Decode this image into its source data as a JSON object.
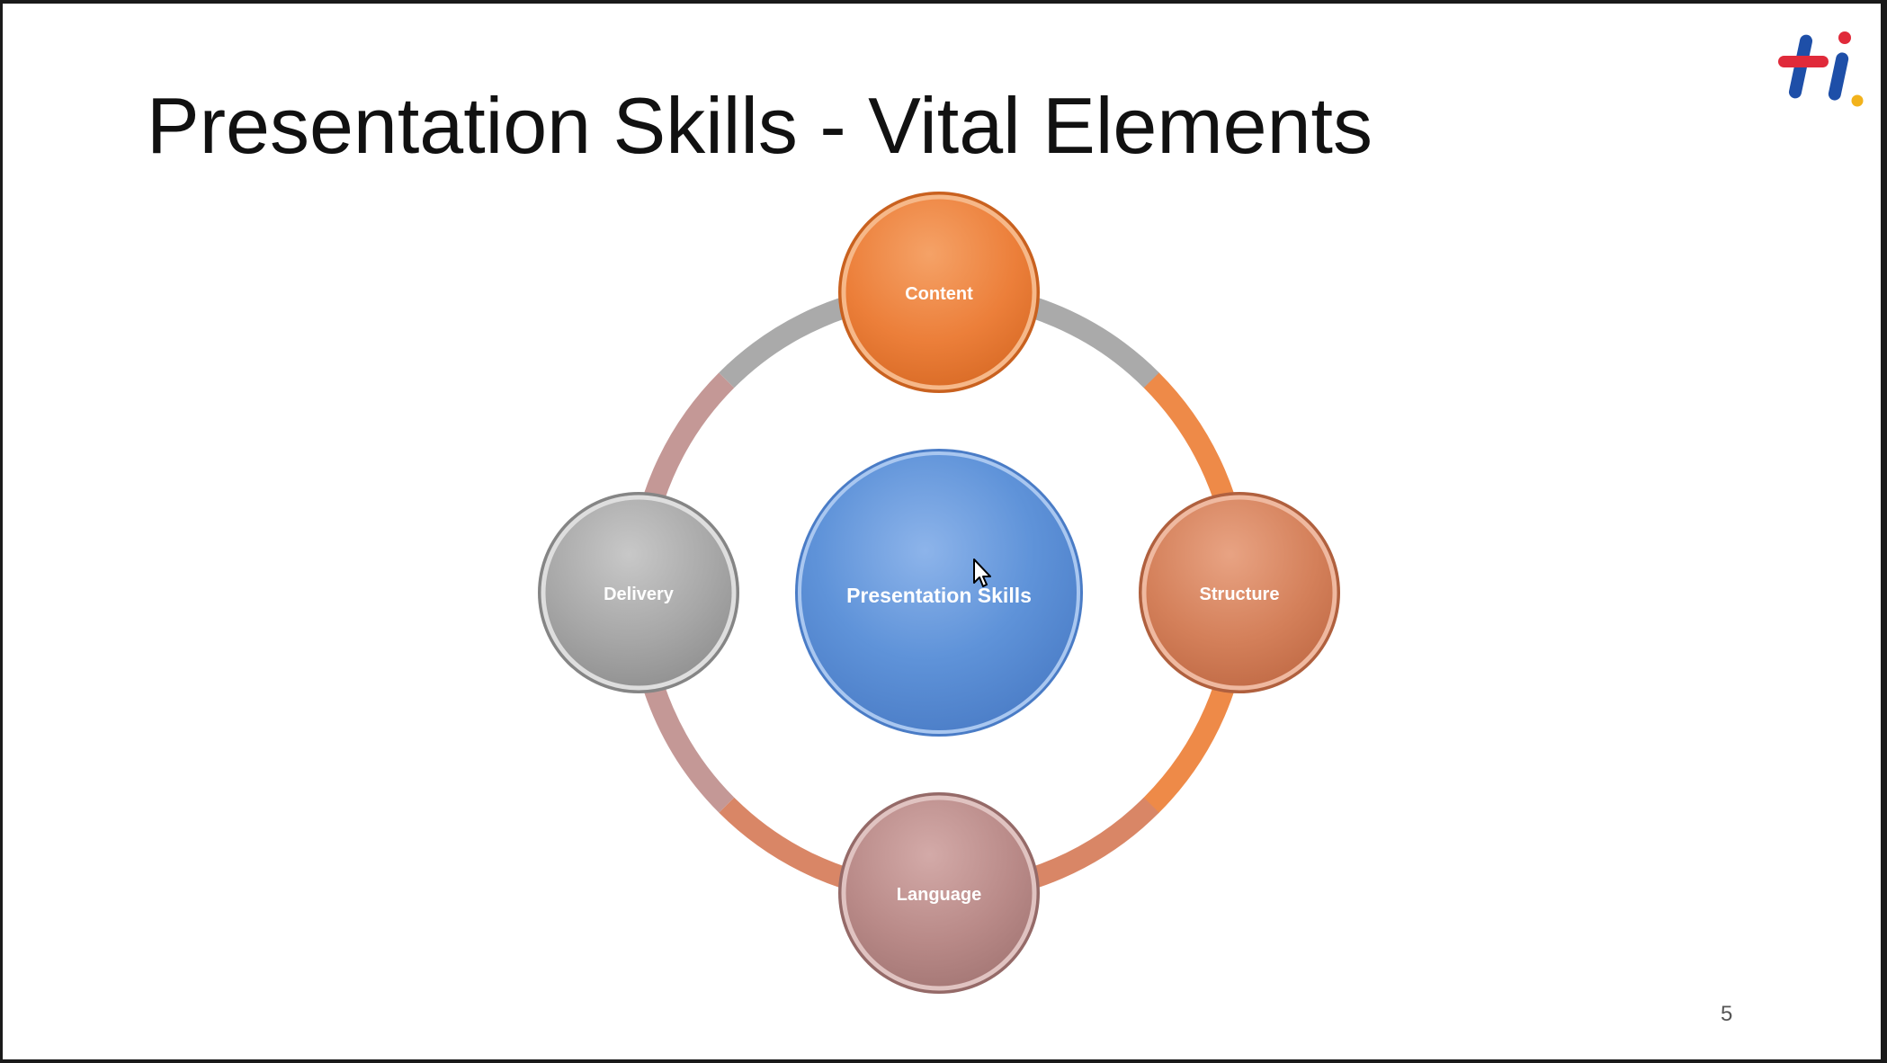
{
  "slide": {
    "title": "Presentation Skills - Vital Elements",
    "page_number": "5"
  },
  "logo": {
    "icon": "hi-brand-logo",
    "colors": {
      "plus_red": "#e02a3a",
      "plus_blue": "#1e4fa8",
      "dot_yellow": "#f2b21b"
    }
  },
  "diagram": {
    "center": {
      "label": "Presentation Skills",
      "color": "#5b8fd6"
    },
    "nodes": [
      {
        "id": "content",
        "label": "Content",
        "color": "#ec7f3a"
      },
      {
        "id": "structure",
        "label": "Structure",
        "color": "#d4805a"
      },
      {
        "id": "language",
        "label": "Language",
        "color": "#b98a88"
      },
      {
        "id": "delivery",
        "label": "Delivery",
        "color": "#a7a7a7"
      }
    ],
    "ring_colors": {
      "content_structure": "#ee8a48",
      "structure_language": "#d98666",
      "language_delivery": "#c49896",
      "delivery_content": "#aaaaaa"
    }
  },
  "cursor": {
    "icon": "mouse-pointer-icon"
  }
}
